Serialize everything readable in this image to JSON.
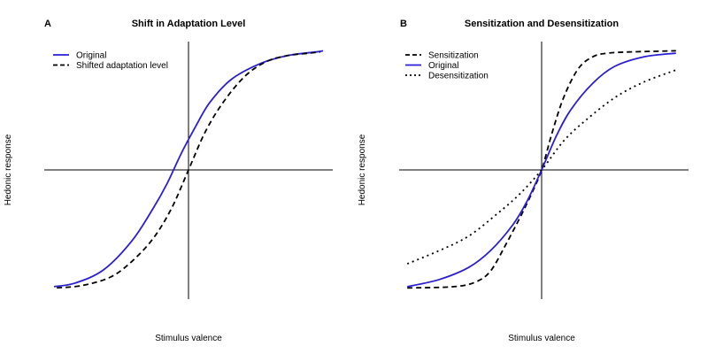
{
  "chart_data": [
    {
      "type": "line",
      "panel": "A",
      "title": "Shift in Adaptation Level",
      "xlabel": "Stimulus valence",
      "ylabel": "Hedonic response",
      "xlim": [
        -1,
        1
      ],
      "ylim": [
        -1,
        1
      ],
      "grid": false,
      "legend_position": "top-left",
      "series": [
        {
          "name": "Original",
          "style": "solid",
          "color": "#2a1fd6",
          "x": [
            -0.95,
            -0.8,
            -0.6,
            -0.4,
            -0.25,
            -0.15,
            -0.05,
            0.05,
            0.15,
            0.3,
            0.5,
            0.7,
            0.9,
            0.95
          ],
          "y": [
            -0.97,
            -0.94,
            -0.83,
            -0.59,
            -0.32,
            -0.11,
            0.14,
            0.36,
            0.56,
            0.75,
            0.88,
            0.95,
            0.98,
            0.99
          ]
        },
        {
          "name": "Shifted adaptation level",
          "style": "dashed",
          "color": "#000000",
          "x": [
            -0.93,
            -0.75,
            -0.55,
            -0.4,
            -0.25,
            -0.12,
            0.0,
            0.12,
            0.25,
            0.4,
            0.55,
            0.7,
            0.85,
            0.93
          ],
          "y": [
            -0.98,
            -0.96,
            -0.89,
            -0.76,
            -0.57,
            -0.32,
            0.0,
            0.32,
            0.57,
            0.78,
            0.9,
            0.95,
            0.97,
            0.98
          ]
        }
      ]
    },
    {
      "type": "line",
      "panel": "B",
      "title": "Sensitization and Desensitization",
      "xlabel": "Stimulus valence",
      "ylabel": "Hedonic response",
      "xlim": [
        -1,
        1
      ],
      "ylim": [
        -1,
        1
      ],
      "grid": false,
      "legend_position": "top-left",
      "series": [
        {
          "name": "Sensitization",
          "style": "dashed",
          "color": "#000000",
          "x": [
            -0.92,
            -0.6,
            -0.45,
            -0.35,
            -0.25,
            -0.15,
            -0.07,
            0.0,
            0.07,
            0.15,
            0.25,
            0.35,
            0.45,
            0.6,
            0.92
          ],
          "y": [
            -0.98,
            -0.97,
            -0.93,
            -0.84,
            -0.63,
            -0.4,
            -0.2,
            0.0,
            0.3,
            0.6,
            0.84,
            0.94,
            0.97,
            0.98,
            0.99
          ]
        },
        {
          "name": "Original",
          "style": "solid",
          "color": "#2a1fd6",
          "x": [
            -0.92,
            -0.7,
            -0.5,
            -0.35,
            -0.2,
            -0.1,
            0.0,
            0.1,
            0.2,
            0.35,
            0.5,
            0.7,
            0.92
          ],
          "y": [
            -0.97,
            -0.91,
            -0.81,
            -0.67,
            -0.46,
            -0.26,
            0.0,
            0.28,
            0.5,
            0.72,
            0.86,
            0.94,
            0.97
          ]
        },
        {
          "name": "Desensitization",
          "style": "dotted",
          "color": "#000000",
          "x": [
            -0.92,
            -0.7,
            -0.5,
            -0.3,
            -0.15,
            0.0,
            0.15,
            0.3,
            0.5,
            0.7,
            0.92
          ],
          "y": [
            -0.78,
            -0.67,
            -0.55,
            -0.36,
            -0.2,
            0.0,
            0.24,
            0.41,
            0.6,
            0.73,
            0.83
          ]
        }
      ]
    }
  ]
}
